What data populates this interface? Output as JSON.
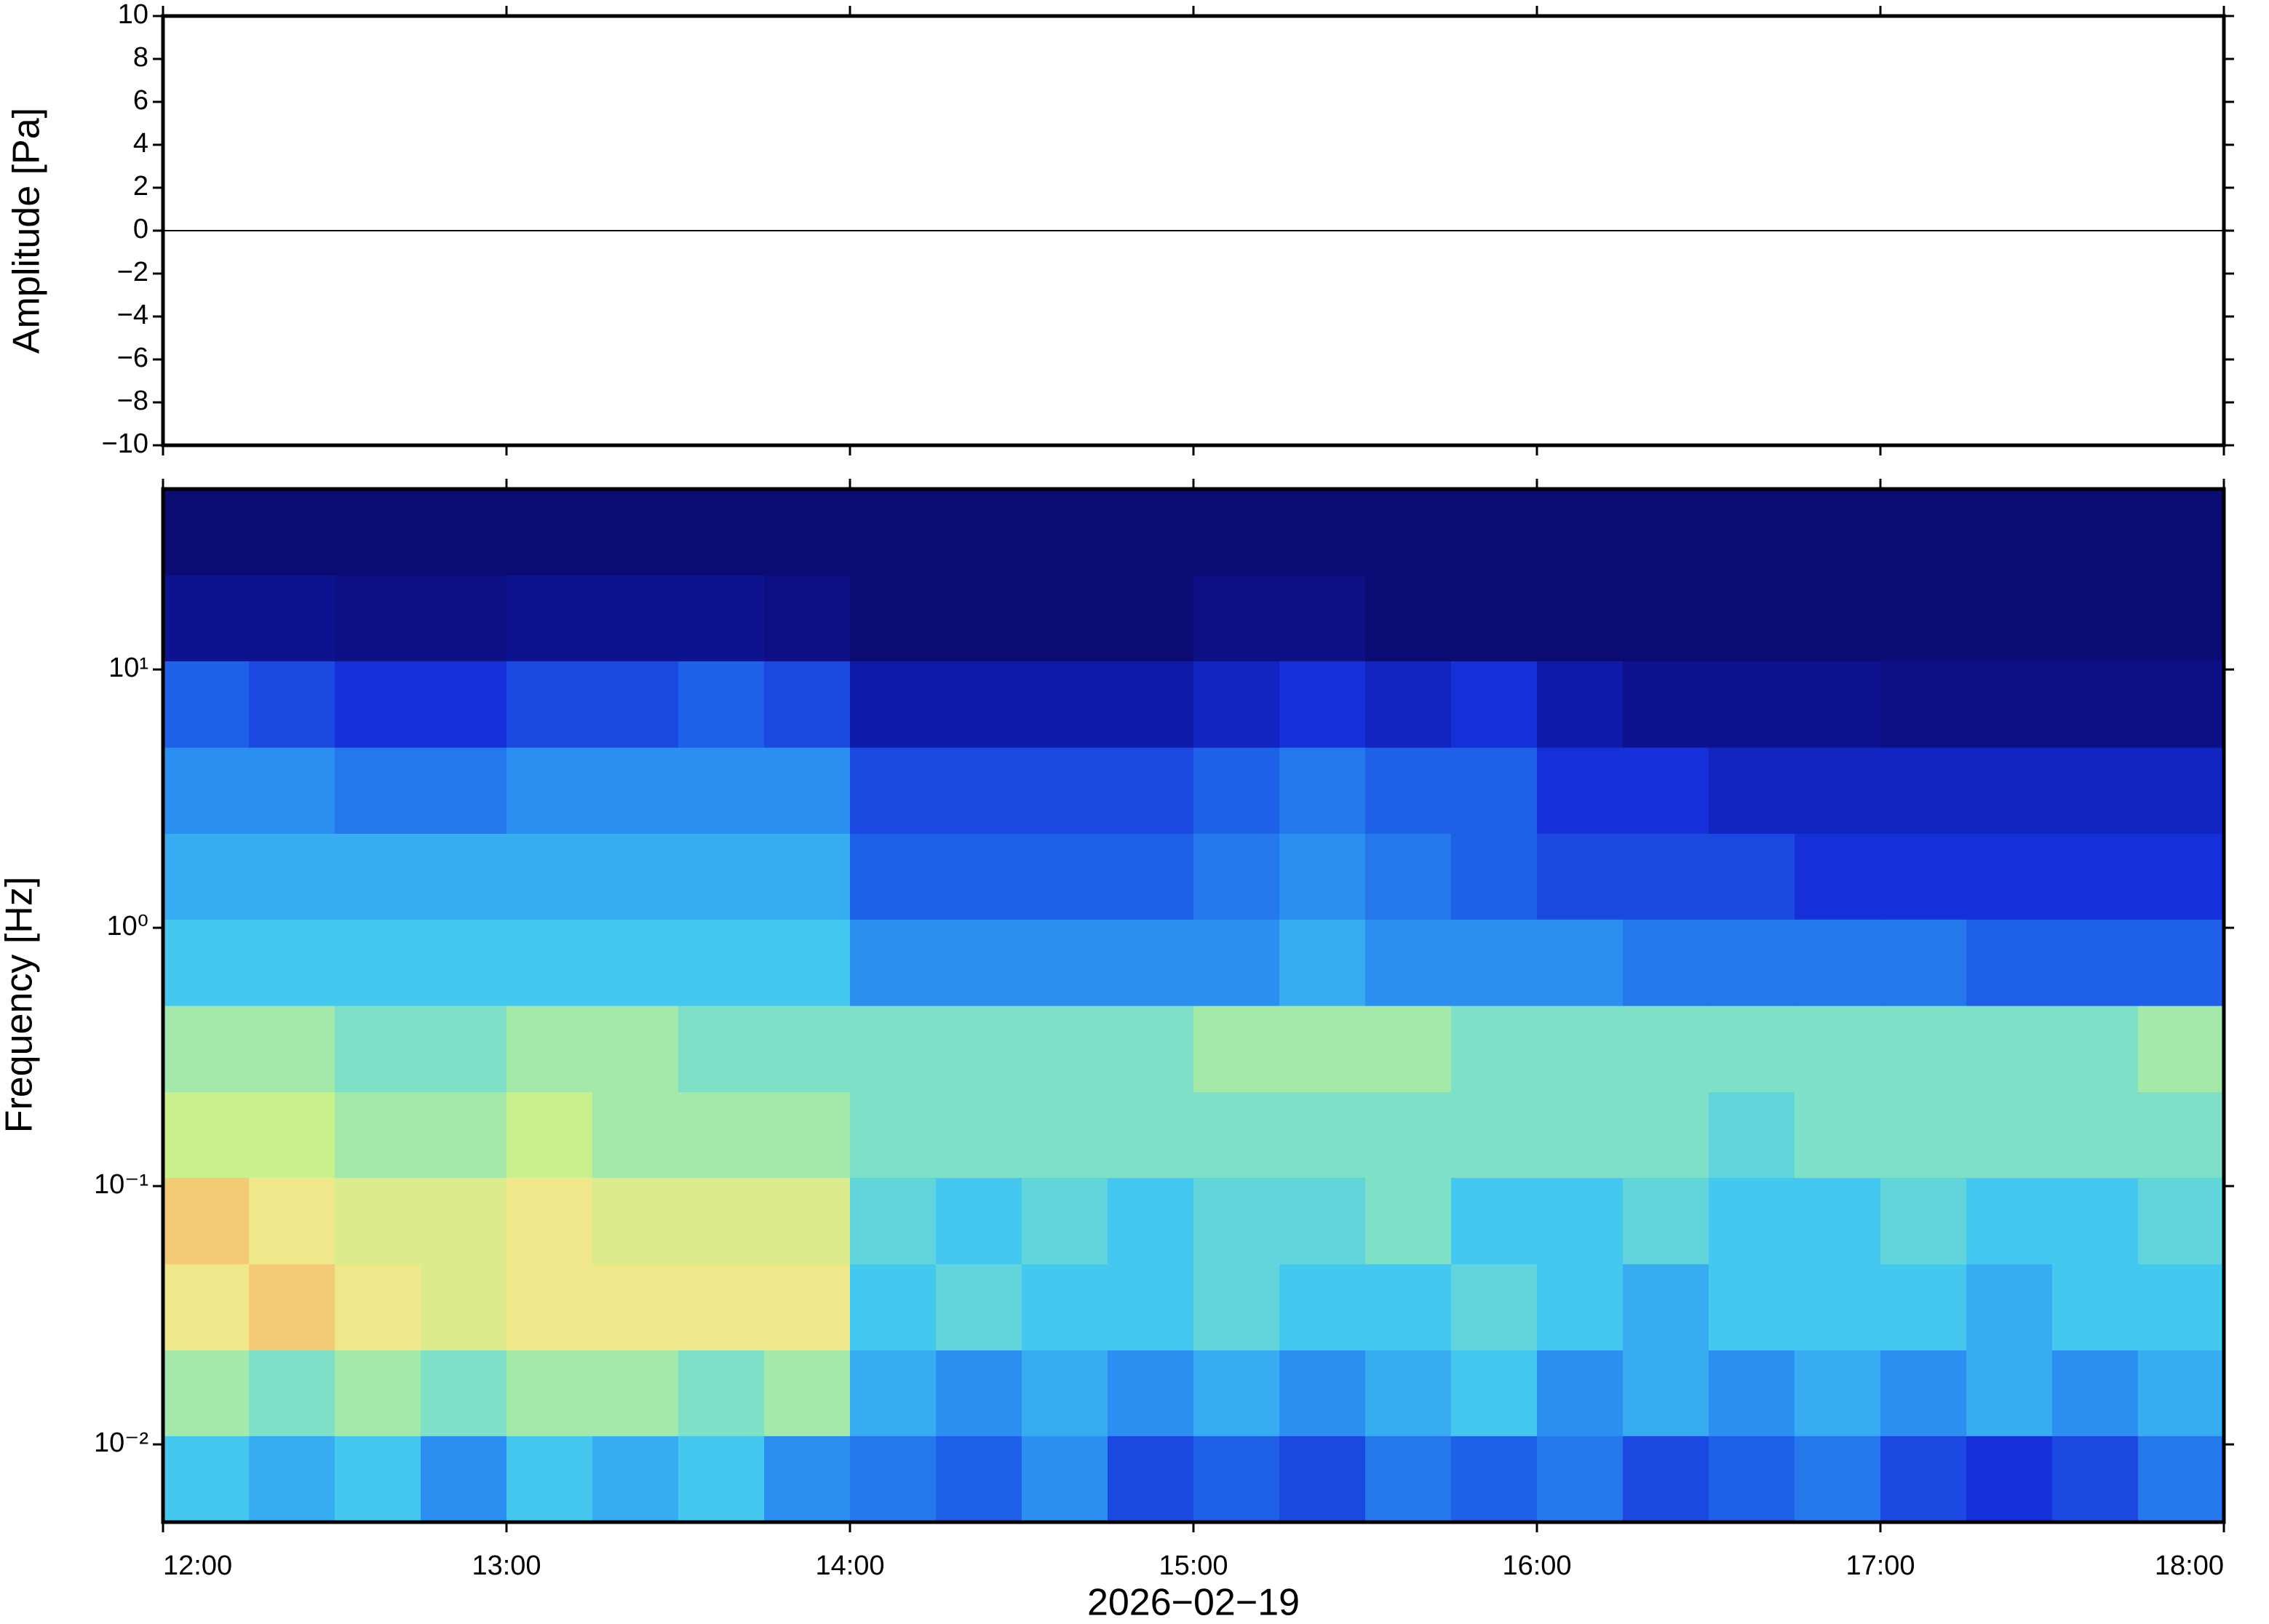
{
  "chart_data": [
    {
      "type": "line",
      "ylabel": "Amplitude [Pa]",
      "xlim": [
        "12:00",
        "18:00"
      ],
      "x": [
        "12:00",
        "13:00",
        "14:00",
        "15:00",
        "16:00",
        "17:00",
        "18:00"
      ],
      "series": [
        {
          "color": "#000000",
          "values": [
            0,
            0,
            0,
            0,
            0,
            0,
            0
          ]
        }
      ],
      "ylim": [
        -10,
        10
      ],
      "yticks": [
        {
          "value": -10,
          "label": "−10"
        },
        {
          "value": -8,
          "label": "−8"
        },
        {
          "value": -6,
          "label": "−6"
        },
        {
          "value": -4,
          "label": "−4"
        },
        {
          "value": -2,
          "label": "−2"
        },
        0,
        2,
        4,
        6,
        8,
        10
      ]
    },
    {
      "type": "heatmap",
      "ylabel": "Frequency [Hz]",
      "xlabel": "2026−02−19",
      "xlim": [
        "12:00",
        "18:00"
      ],
      "xticks": [
        "12:00",
        "13:00",
        "14:00",
        "15:00",
        "16:00",
        "17:00",
        "18:00"
      ],
      "x": [
        "12:00",
        "12:15",
        "12:30",
        "12:45",
        "13:00",
        "13:15",
        "13:30",
        "13:45",
        "14:00",
        "14:15",
        "14:30",
        "14:45",
        "15:00",
        "15:15",
        "15:30",
        "15:45",
        "16:00",
        "16:15",
        "16:30",
        "16:45",
        "17:00",
        "17:15",
        "17:30",
        "17:45"
      ],
      "ylog": true,
      "ylim": [
        0.005,
        50
      ],
      "yticks": [
        {
          "value": 0.01,
          "label": "10⁻²"
        },
        {
          "value": 0.1,
          "label": "10⁻¹"
        },
        {
          "value": 1,
          "label": "10⁰"
        },
        {
          "value": 10,
          "label": "10¹"
        }
      ],
      "ybins": [
        0.005,
        0.0108,
        0.0232,
        0.05,
        0.108,
        0.232,
        0.5,
        1.08,
        2.32,
        5,
        10.8,
        23.2,
        50
      ],
      "zlim": [
        0,
        10
      ],
      "colormap": [
        "#0b0b74",
        "#0f1aa8",
        "#1530d8",
        "#1f60e8",
        "#2a8ff0",
        "#45c8f0",
        "#7fe0c8",
        "#c8f08c",
        "#f0e68a",
        "#f5b060",
        "#e85030"
      ],
      "z": [
        [
          5,
          4.5,
          5,
          4,
          5,
          4.5,
          5,
          4,
          3.5,
          3,
          4,
          2.5,
          3,
          2.5,
          3.5,
          3,
          3.5,
          2.5,
          3,
          3.5,
          2.5,
          2,
          2.5,
          3.5
        ],
        [
          6.5,
          6,
          6.5,
          6,
          6.5,
          6.5,
          6,
          6.5,
          4.5,
          4,
          4.5,
          4,
          4.5,
          4,
          4.5,
          5,
          4,
          4.5,
          4,
          4.5,
          4,
          4.5,
          4,
          4.5
        ],
        [
          8,
          8.5,
          8,
          7.5,
          8,
          8,
          8,
          8,
          5,
          5.5,
          5,
          5,
          5.5,
          5,
          5,
          5.5,
          5,
          4.5,
          5,
          5,
          5,
          4.5,
          5,
          5
        ],
        [
          8.5,
          8,
          7.5,
          7.5,
          8,
          7.5,
          7.5,
          7.5,
          5.5,
          5,
          5.5,
          5,
          5.5,
          5.5,
          6,
          5,
          5,
          5.5,
          5,
          5,
          5.5,
          5,
          5,
          5.5
        ],
        [
          7,
          7,
          6.5,
          6.5,
          7,
          6.5,
          6.5,
          6.5,
          6,
          6,
          6,
          6,
          6,
          6,
          6,
          6,
          6,
          6,
          5.5,
          6,
          6,
          6,
          6,
          6
        ],
        [
          6.5,
          6.5,
          6,
          6,
          6.5,
          6.5,
          6,
          6,
          6,
          6,
          6,
          6,
          6.5,
          6.5,
          6.5,
          6,
          6,
          6,
          6,
          6,
          6,
          6,
          6,
          6.5
        ],
        [
          5,
          5,
          5,
          5,
          5,
          5,
          5,
          5,
          4,
          4,
          4,
          4,
          4,
          4.5,
          4,
          4,
          4,
          3.5,
          3.5,
          3.5,
          3.5,
          3,
          3,
          3
        ],
        [
          4.5,
          4.5,
          4.5,
          4.5,
          4.5,
          4.5,
          4.5,
          4.5,
          3,
          3,
          3,
          3,
          3.5,
          4,
          3.5,
          3,
          2.5,
          2.5,
          2.5,
          2,
          2,
          2,
          2,
          2
        ],
        [
          4,
          4,
          3.5,
          3.5,
          4,
          4,
          4,
          4,
          2.5,
          2.5,
          2.5,
          2.5,
          3,
          3.5,
          3,
          3,
          2,
          2,
          1.5,
          1.5,
          1.5,
          1.5,
          1.5,
          1.5
        ],
        [
          3,
          2.5,
          2,
          2,
          2.5,
          2.5,
          3,
          2.5,
          1,
          1,
          1,
          1,
          1.5,
          2,
          1.5,
          2,
          1,
          0.5,
          0.5,
          0.5,
          0.3,
          0.3,
          0.3,
          0.3
        ],
        [
          0.5,
          0.5,
          0.3,
          0.3,
          0.5,
          0.5,
          0.5,
          0.3,
          0,
          0,
          0,
          0,
          0.3,
          0.3,
          0,
          0,
          0,
          0,
          0,
          0,
          0,
          0,
          0,
          0
        ],
        [
          0,
          0,
          0,
          0,
          0,
          0,
          0,
          0,
          0,
          0,
          0,
          0,
          0,
          0,
          0,
          0,
          0,
          0,
          0,
          0,
          0,
          0,
          0,
          0
        ]
      ]
    }
  ]
}
